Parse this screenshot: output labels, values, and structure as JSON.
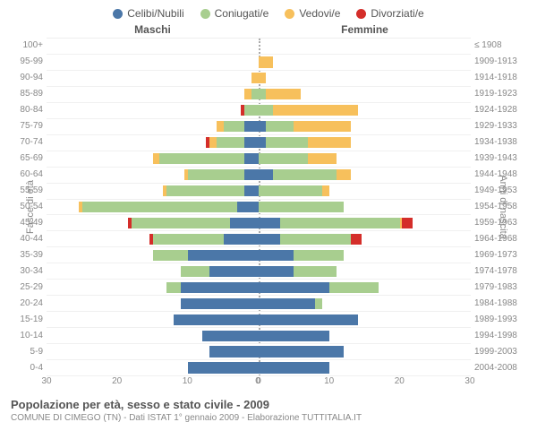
{
  "chart": {
    "type": "population-pyramid",
    "legend": [
      {
        "label": "Celibi/Nubili",
        "color": "#4b77a8"
      },
      {
        "label": "Coniugati/e",
        "color": "#a8ce8f"
      },
      {
        "label": "Vedovi/e",
        "color": "#f7c05c"
      },
      {
        "label": "Divorziati/e",
        "color": "#d42e2a"
      }
    ],
    "header_male": "Maschi",
    "header_female": "Femmine",
    "ylabel_left": "Fasce di età",
    "ylabel_right": "Anni di nascita",
    "xmax": 30,
    "xticks_m": [
      30,
      20,
      10,
      0
    ],
    "xticks_f": [
      0,
      10,
      20,
      30
    ],
    "age_buckets": [
      "100+",
      "95-99",
      "90-94",
      "85-89",
      "80-84",
      "75-79",
      "70-74",
      "65-69",
      "60-64",
      "55-59",
      "50-54",
      "45-49",
      "40-44",
      "35-39",
      "30-34",
      "25-29",
      "20-24",
      "15-19",
      "10-14",
      "5-9",
      "0-4"
    ],
    "birth_years": [
      "≤ 1908",
      "1909-1913",
      "1914-1918",
      "1919-1923",
      "1924-1928",
      "1929-1933",
      "1934-1938",
      "1939-1943",
      "1944-1948",
      "1949-1953",
      "1954-1958",
      "1959-1963",
      "1964-1968",
      "1969-1973",
      "1974-1978",
      "1979-1983",
      "1984-1988",
      "1989-1993",
      "1994-1998",
      "1999-2003",
      "2004-2008"
    ],
    "male": [
      {
        "c": 0,
        "m": 0,
        "w": 0,
        "d": 0
      },
      {
        "c": 0,
        "m": 0,
        "w": 0,
        "d": 0
      },
      {
        "c": 0,
        "m": 0,
        "w": 1,
        "d": 0
      },
      {
        "c": 0,
        "m": 1,
        "w": 1,
        "d": 0
      },
      {
        "c": 0,
        "m": 2,
        "w": 0,
        "d": 0.5
      },
      {
        "c": 2,
        "m": 3,
        "w": 1,
        "d": 0
      },
      {
        "c": 2,
        "m": 4,
        "w": 1,
        "d": 0.5
      },
      {
        "c": 2,
        "m": 12,
        "w": 1,
        "d": 0
      },
      {
        "c": 2,
        "m": 8,
        "w": 0.5,
        "d": 0
      },
      {
        "c": 2,
        "m": 11,
        "w": 0.5,
        "d": 0
      },
      {
        "c": 3,
        "m": 22,
        "w": 0.5,
        "d": 0
      },
      {
        "c": 4,
        "m": 14,
        "w": 0,
        "d": 0.5
      },
      {
        "c": 5,
        "m": 10,
        "w": 0,
        "d": 0.5
      },
      {
        "c": 10,
        "m": 5,
        "w": 0,
        "d": 0
      },
      {
        "c": 7,
        "m": 4,
        "w": 0,
        "d": 0
      },
      {
        "c": 11,
        "m": 2,
        "w": 0,
        "d": 0
      },
      {
        "c": 11,
        "m": 0,
        "w": 0,
        "d": 0
      },
      {
        "c": 12,
        "m": 0,
        "w": 0,
        "d": 0
      },
      {
        "c": 8,
        "m": 0,
        "w": 0,
        "d": 0
      },
      {
        "c": 7,
        "m": 0,
        "w": 0,
        "d": 0
      },
      {
        "c": 10,
        "m": 0,
        "w": 0,
        "d": 0
      }
    ],
    "female": [
      {
        "c": 0,
        "m": 0,
        "w": 0,
        "d": 0
      },
      {
        "c": 0,
        "m": 0,
        "w": 2,
        "d": 0
      },
      {
        "c": 0,
        "m": 0,
        "w": 1,
        "d": 0
      },
      {
        "c": 0,
        "m": 1,
        "w": 5,
        "d": 0
      },
      {
        "c": 0,
        "m": 2,
        "w": 12,
        "d": 0
      },
      {
        "c": 1,
        "m": 4,
        "w": 8,
        "d": 0
      },
      {
        "c": 1,
        "m": 6,
        "w": 6,
        "d": 0
      },
      {
        "c": 0,
        "m": 7,
        "w": 4,
        "d": 0
      },
      {
        "c": 2,
        "m": 9,
        "w": 2,
        "d": 0
      },
      {
        "c": 0,
        "m": 9,
        "w": 1,
        "d": 0
      },
      {
        "c": 0,
        "m": 12,
        "w": 0,
        "d": 0
      },
      {
        "c": 3,
        "m": 17,
        "w": 0.3,
        "d": 1.5
      },
      {
        "c": 3,
        "m": 10,
        "w": 0,
        "d": 1.5
      },
      {
        "c": 5,
        "m": 7,
        "w": 0,
        "d": 0
      },
      {
        "c": 5,
        "m": 6,
        "w": 0,
        "d": 0
      },
      {
        "c": 10,
        "m": 7,
        "w": 0,
        "d": 0
      },
      {
        "c": 8,
        "m": 1,
        "w": 0,
        "d": 0
      },
      {
        "c": 14,
        "m": 0,
        "w": 0,
        "d": 0
      },
      {
        "c": 10,
        "m": 0,
        "w": 0,
        "d": 0
      },
      {
        "c": 12,
        "m": 0,
        "w": 0,
        "d": 0
      },
      {
        "c": 10,
        "m": 0,
        "w": 0,
        "d": 0
      }
    ],
    "title": "Popolazione per età, sesso e stato civile - 2009",
    "subtitle": "COMUNE DI CIMEGO (TN) - Dati ISTAT 1° gennaio 2009 - Elaborazione TUTTITALIA.IT"
  }
}
